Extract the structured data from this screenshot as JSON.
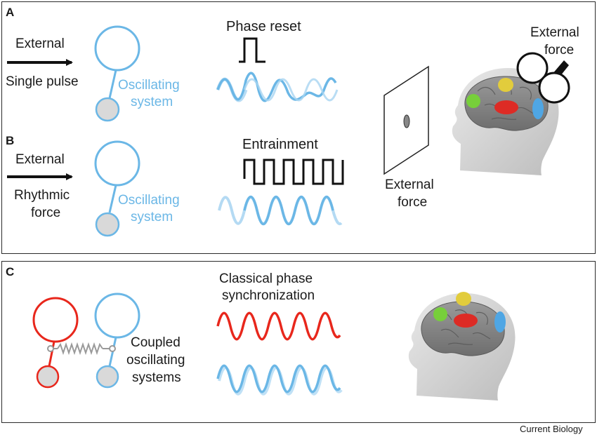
{
  "panel_a": {
    "label": "A",
    "input_line1": "External",
    "input_line2": "Single pulse",
    "system_line1": "Oscillating",
    "system_line2": "system",
    "waveform_title": "Phase reset"
  },
  "panel_b": {
    "label": "B",
    "input_line1": "External",
    "input_line2": "Rhythmic",
    "input_line3": "force",
    "system_line1": "Oscillating",
    "system_line2": "system",
    "waveform_title": "Entrainment",
    "screen_line1": "External",
    "screen_line2": "force",
    "head_line1": "External",
    "head_line2": "force"
  },
  "panel_c": {
    "label": "C",
    "system_line1": "Coupled",
    "system_line2": "oscillating",
    "system_line3": "systems",
    "waveform_title_line1": "Classical phase",
    "waveform_title_line2": "synchronization"
  },
  "credit": "Current Biology",
  "colors": {
    "oscillator_blue": "#6bb7e6",
    "oscillator_red": "#e8271c",
    "bob_fill": "#d9d9d9",
    "region_yellow": "#e2cc3c",
    "region_green": "#77cf3a",
    "region_red": "#dd2b25",
    "region_blue": "#4fa6e4"
  }
}
